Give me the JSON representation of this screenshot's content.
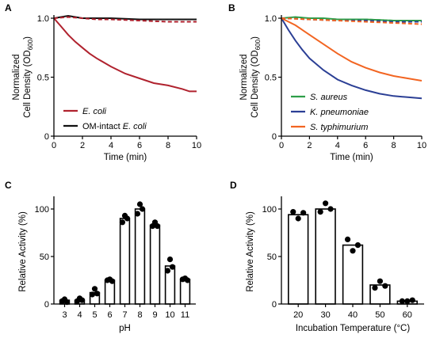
{
  "chart_data": [
    {
      "panel": "A",
      "type": "line",
      "xlabel": "Time (min)",
      "ylabel_line1": "Normalized",
      "ylabel_line2": "Cell Density (OD",
      "ylabel_sub": "600",
      "ylabel_close": ")",
      "xlim": [
        0,
        10
      ],
      "ylim": [
        0,
        1.0
      ],
      "xticks": [
        0,
        2,
        4,
        6,
        8,
        10
      ],
      "yticks": [
        0,
        0.5,
        1.0
      ],
      "ytick_labels": [
        "0",
        "0.5",
        "1.0"
      ],
      "legend_placement": "bottom-left",
      "series": [
        {
          "name": "E. coli",
          "color": "#b0222e",
          "dashed": false,
          "italic_prefix": "E. coli",
          "suffix": "",
          "x": [
            0,
            0.5,
            1,
            1.5,
            2,
            2.5,
            3,
            4,
            5,
            6,
            7,
            8,
            9,
            9.5,
            10
          ],
          "y": [
            1.0,
            0.93,
            0.86,
            0.8,
            0.75,
            0.7,
            0.66,
            0.59,
            0.53,
            0.49,
            0.45,
            0.43,
            0.4,
            0.38,
            0.38
          ]
        },
        {
          "name": "OM-intact E. coli",
          "color": "#111111",
          "dashed": false,
          "italic_prefix": "",
          "prefix": "OM-intact ",
          "suffix": "E. coli",
          "x": [
            0,
            0.5,
            1,
            1.5,
            2,
            3,
            4,
            6,
            8,
            10
          ],
          "y": [
            1.0,
            1.01,
            1.02,
            1.01,
            1.0,
            1.0,
            1.0,
            0.99,
            0.99,
            0.99
          ]
        },
        {
          "name": "",
          "color": "#b0222e",
          "dashed": true,
          "x": [
            0,
            1,
            2,
            3,
            4,
            6,
            8,
            10
          ],
          "y": [
            1.0,
            1.01,
            1.0,
            0.99,
            0.99,
            0.98,
            0.97,
            0.97
          ]
        }
      ]
    },
    {
      "panel": "B",
      "type": "line",
      "xlabel": "Time (min)",
      "ylabel_line1": "Normalized",
      "ylabel_line2": "Cell Density (OD",
      "ylabel_sub": "600",
      "ylabel_close": ")",
      "xlim": [
        0,
        10
      ],
      "ylim": [
        0,
        1.0
      ],
      "xticks": [
        0,
        2,
        4,
        6,
        8,
        10
      ],
      "yticks": [
        0,
        0.5,
        1.0
      ],
      "ytick_labels": [
        "0",
        "0.5",
        "1.0"
      ],
      "legend_placement": "bottom-left",
      "series": [
        {
          "name": "S. aureus",
          "color": "#2e9e48",
          "dashed": false,
          "x": [
            0,
            1,
            2,
            3,
            4,
            6,
            8,
            10
          ],
          "y": [
            1.0,
            1.01,
            1.0,
            1.0,
            0.99,
            0.99,
            0.98,
            0.98
          ]
        },
        {
          "name": "K. pneumoniae",
          "color": "#2b3f95",
          "dashed": false,
          "x": [
            0,
            0.5,
            1,
            1.5,
            2,
            3,
            4,
            5,
            6,
            7,
            8,
            9,
            10
          ],
          "y": [
            1.0,
            0.9,
            0.81,
            0.73,
            0.66,
            0.56,
            0.48,
            0.43,
            0.39,
            0.36,
            0.34,
            0.33,
            0.32
          ]
        },
        {
          "name": "S. typhimurium",
          "color": "#f26522",
          "dashed": false,
          "x": [
            0,
            1,
            2,
            3,
            4,
            5,
            6,
            7,
            8,
            9,
            10
          ],
          "y": [
            1.0,
            0.94,
            0.86,
            0.78,
            0.7,
            0.63,
            0.58,
            0.54,
            0.51,
            0.49,
            0.47
          ]
        },
        {
          "name": "",
          "color": "#2e9e48",
          "dashed": true,
          "x": [
            0,
            2,
            4,
            6,
            8,
            10
          ],
          "y": [
            1.0,
            1.0,
            0.99,
            0.99,
            0.98,
            0.97
          ]
        },
        {
          "name": "",
          "color": "#2b3f95",
          "dashed": true,
          "x": [
            0,
            2,
            4,
            6,
            8,
            10
          ],
          "y": [
            1.0,
            0.99,
            0.98,
            0.98,
            0.97,
            0.97
          ]
        },
        {
          "name": "",
          "color": "#f26522",
          "dashed": true,
          "x": [
            0,
            2,
            4,
            6,
            8,
            10
          ],
          "y": [
            1.0,
            0.99,
            0.98,
            0.97,
            0.96,
            0.95
          ]
        }
      ]
    },
    {
      "panel": "C",
      "type": "bar",
      "xlabel": "pH",
      "ylabel": "Relative Activity (%)",
      "ylim": [
        0,
        110
      ],
      "yticks": [
        0,
        50,
        100
      ],
      "categories": [
        "3",
        "4",
        "5",
        "6",
        "7",
        "8",
        "9",
        "10",
        "11"
      ],
      "values": [
        4,
        4,
        12,
        25,
        90,
        100,
        83,
        40,
        26
      ],
      "replicates": [
        [
          3,
          5,
          2
        ],
        [
          3,
          6,
          4
        ],
        [
          10,
          16,
          11
        ],
        [
          25,
          26,
          24
        ],
        [
          86,
          93,
          90
        ],
        [
          95,
          105,
          100
        ],
        [
          82,
          86,
          82
        ],
        [
          35,
          47,
          39
        ],
        [
          26,
          27,
          25
        ]
      ],
      "bar_fill": "#ffffff",
      "bar_stroke": "#000000"
    },
    {
      "panel": "D",
      "type": "bar",
      "xlabel": "Incubation Temperature (°C)",
      "ylabel": "Relative Activity (%)",
      "ylim": [
        0,
        110
      ],
      "yticks": [
        0,
        50,
        100
      ],
      "categories": [
        "20",
        "30",
        "40",
        "50",
        "60"
      ],
      "values": [
        94,
        100,
        62,
        20,
        3
      ],
      "replicates": [
        [
          97,
          90,
          96
        ],
        [
          97,
          106,
          100
        ],
        [
          68,
          56,
          62
        ],
        [
          17,
          24,
          19
        ],
        [
          3,
          3,
          4
        ]
      ],
      "bar_fill": "#ffffff",
      "bar_stroke": "#000000"
    }
  ]
}
